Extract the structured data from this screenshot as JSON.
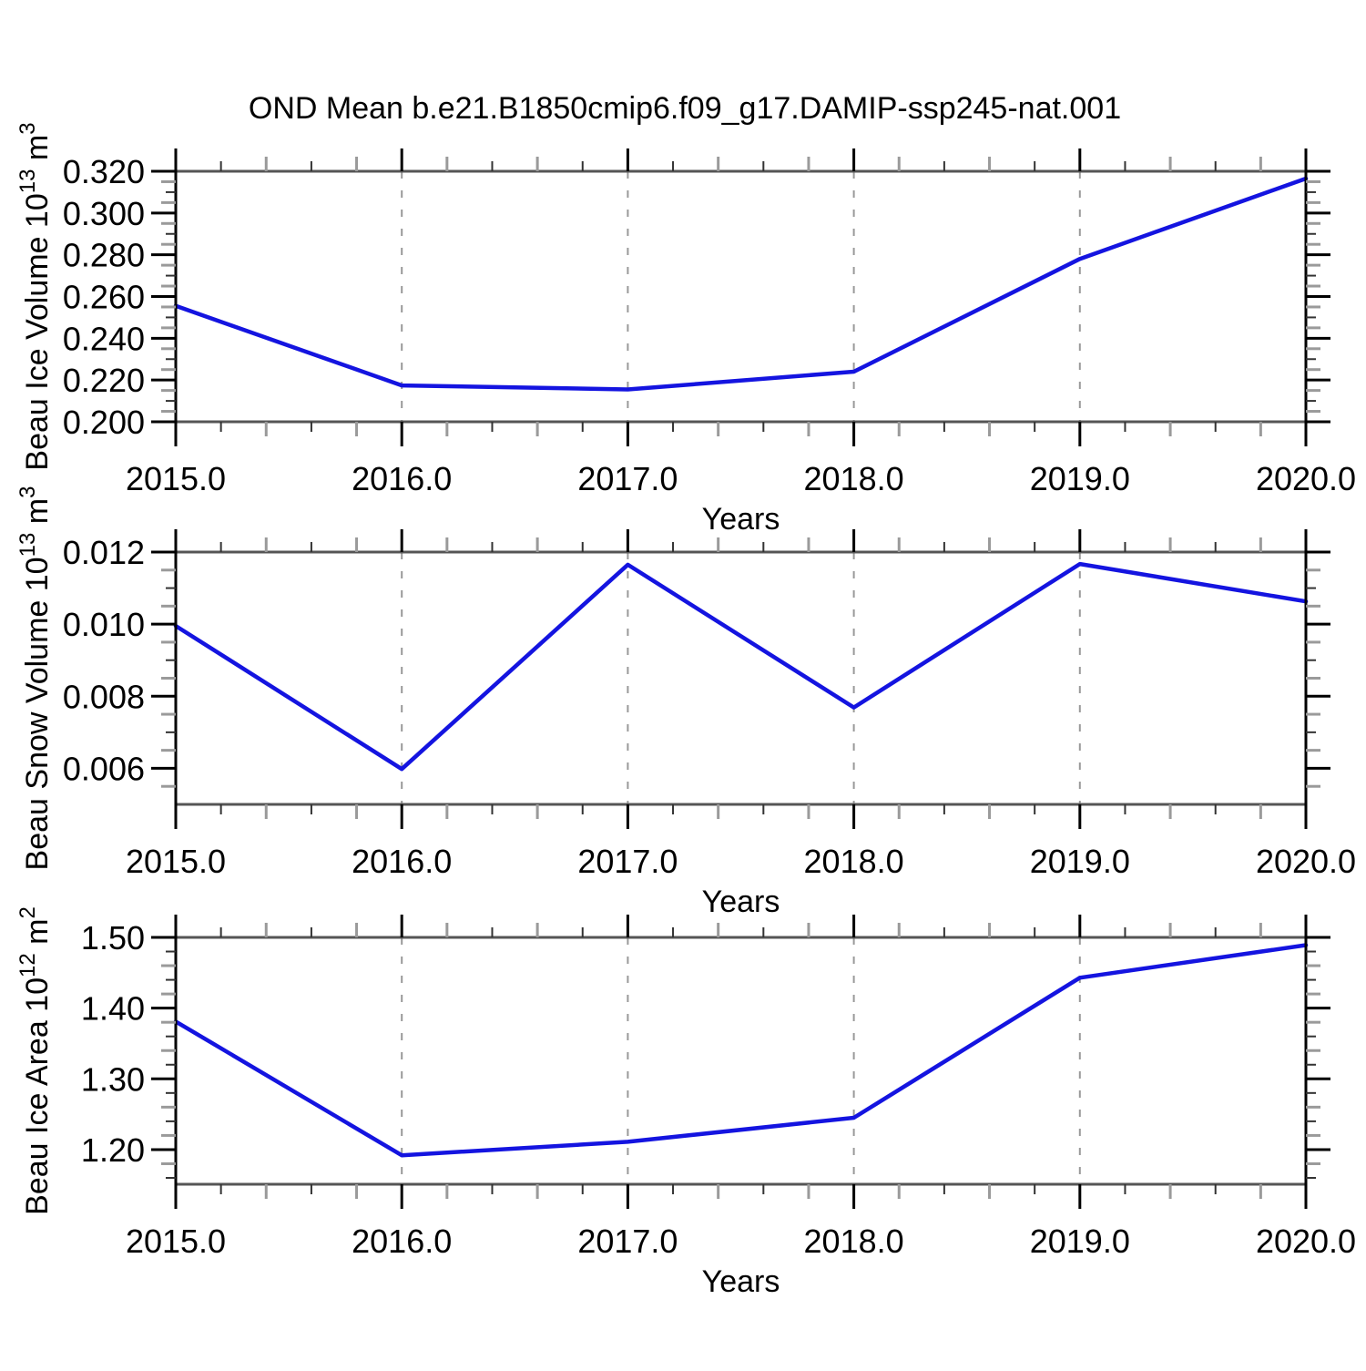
{
  "title": "OND Mean b.e21.B1850cmip6.f09_g17.DAMIP-ssp245-nat.001",
  "line_color": "#1414e0",
  "grid_color": "#999999",
  "x_axis": {
    "label": "Years",
    "range": [
      2015,
      2020
    ],
    "tick_values": [
      2015,
      2016,
      2017,
      2018,
      2019,
      2020
    ],
    "tick_labels": [
      "2015.0",
      "2016.0",
      "2017.0",
      "2018.0",
      "2019.0",
      "2020.0"
    ],
    "minor_step": 0.2,
    "grid_years": [
      2016,
      2017,
      2018,
      2019
    ]
  },
  "chart_data": [
    {
      "type": "line",
      "name": "beau-ice-volume",
      "ylabel": "Beau Ice Volume 10^13 m^3",
      "ylabel_parts": [
        {
          "text": "Beau Ice Volume 10",
          "sup": false
        },
        {
          "text": "13",
          "sup": true
        },
        {
          "text": " m",
          "sup": false
        },
        {
          "text": "3",
          "sup": true
        }
      ],
      "xlabel": "Years",
      "x": [
        2015,
        2016,
        2017,
        2018,
        2019,
        2020
      ],
      "values": [
        0.2555,
        0.2174,
        0.2155,
        0.224,
        0.278,
        0.3165
      ],
      "ylim": [
        0.2,
        0.32
      ],
      "ytick_values": [
        0.2,
        0.22,
        0.24,
        0.26,
        0.28,
        0.3,
        0.32
      ],
      "ytick_labels": [
        "0.200",
        "0.220",
        "0.240",
        "0.260",
        "0.280",
        "0.300",
        "0.320"
      ],
      "y_minor_step": 0.005
    },
    {
      "type": "line",
      "name": "beau-snow-volume",
      "ylabel": "Beau Snow Volume 10^13 m^3",
      "ylabel_parts": [
        {
          "text": "Beau Snow Volume 10",
          "sup": false
        },
        {
          "text": "13",
          "sup": true
        },
        {
          "text": " m",
          "sup": false
        },
        {
          "text": "3",
          "sup": true
        }
      ],
      "xlabel": "Years",
      "x": [
        2015,
        2016,
        2017,
        2018,
        2019,
        2020
      ],
      "values": [
        0.00995,
        0.00598,
        0.01165,
        0.00769,
        0.01167,
        0.01063
      ],
      "ylim": [
        0.005,
        0.012
      ],
      "ytick_values": [
        0.006,
        0.008,
        0.01,
        0.012
      ],
      "ytick_labels": [
        "0.006",
        "0.008",
        "0.010",
        "0.012"
      ],
      "y_minor_step": 0.0005
    },
    {
      "type": "line",
      "name": "beau-ice-area",
      "ylabel": "Beau Ice Area 10^12 m^2",
      "ylabel_parts": [
        {
          "text": "Beau Ice Area 10",
          "sup": false
        },
        {
          "text": "12",
          "sup": true
        },
        {
          "text": " m",
          "sup": false
        },
        {
          "text": "2",
          "sup": true
        }
      ],
      "xlabel": "Years",
      "x": [
        2015,
        2016,
        2017,
        2018,
        2019,
        2020
      ],
      "values": [
        1.381,
        1.192,
        1.211,
        1.245,
        1.443,
        1.489
      ],
      "ylim": [
        1.151,
        1.5
      ],
      "ytick_values": [
        1.2,
        1.3,
        1.4,
        1.5
      ],
      "ytick_labels": [
        "1.20",
        "1.30",
        "1.40",
        "1.50"
      ],
      "y_minor_step": 0.02
    }
  ]
}
